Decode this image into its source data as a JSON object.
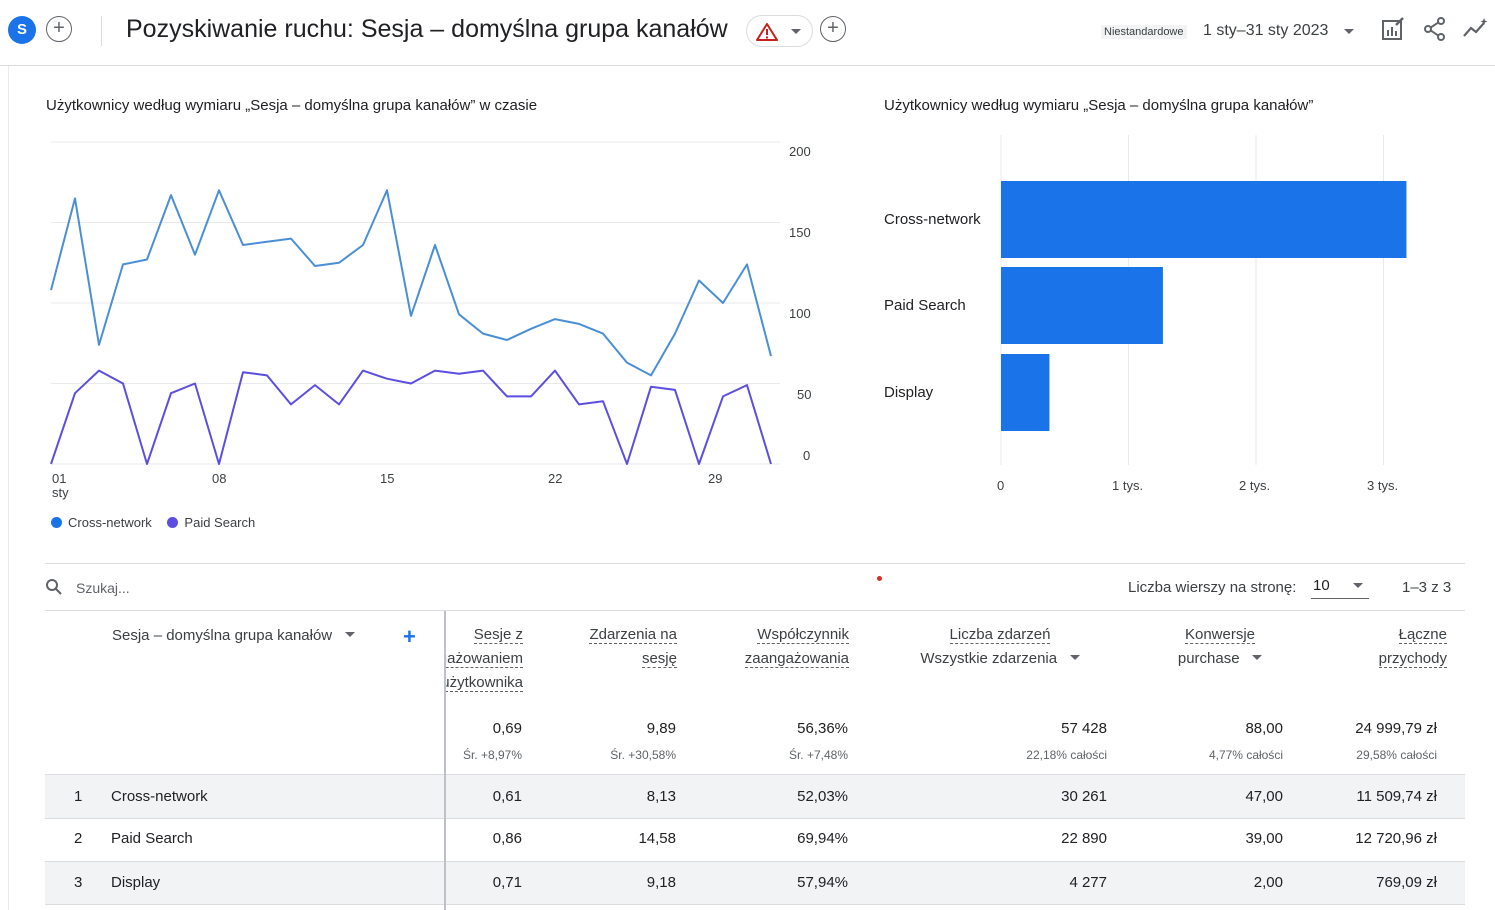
{
  "header": {
    "avatar_letter": "S",
    "title": "Pozyskiwanie ruchu: Sesja – domyślna grupa kanałów",
    "date_label": "Niestandardowe",
    "date_range": "1 sty–31 sty 2023"
  },
  "line_chart": {
    "title": "Użytkownicy według wymiaru „Sesja – domyślna grupa kanałów” w czasie",
    "y_ticks": [
      "200",
      "150",
      "100",
      "50",
      "0"
    ],
    "x_ticks": [
      "01",
      "08",
      "15",
      "22",
      "29"
    ],
    "x_sub": "sty",
    "legend": [
      {
        "label": "Cross-network",
        "color": "#1a73e8"
      },
      {
        "label": "Paid Search",
        "color": "#5b4ee0"
      }
    ]
  },
  "bar_chart": {
    "title": "Użytkownicy według wymiaru „Sesja – domyślna grupa kanałów”",
    "x_ticks": [
      "0",
      "1 tys.",
      "2 tys.",
      "3 tys."
    ]
  },
  "chart_data": [
    {
      "type": "line",
      "title": "Użytkownicy według wymiaru „Sesja – domyślna grupa kanałów” w czasie",
      "x": [
        1,
        2,
        3,
        4,
        5,
        6,
        7,
        8,
        9,
        10,
        11,
        12,
        13,
        14,
        15,
        16,
        17,
        18,
        19,
        20,
        21,
        22,
        23,
        24,
        25,
        26,
        27,
        28,
        29,
        30,
        31
      ],
      "ylim": [
        0,
        200
      ],
      "series": [
        {
          "name": "Cross-network",
          "color": "#4a8fd6",
          "values": [
            108,
            165,
            74,
            124,
            127,
            167,
            130,
            170,
            136,
            138,
            140,
            123,
            125,
            136,
            170,
            92,
            136,
            93,
            81,
            77,
            84,
            90,
            87,
            81,
            63,
            55,
            81,
            114,
            100,
            124,
            67
          ]
        },
        {
          "name": "Paid Search",
          "color": "#5b4ee0",
          "values": [
            0,
            44,
            58,
            50,
            0,
            44,
            50,
            0,
            57,
            55,
            37,
            49,
            37,
            58,
            53,
            50,
            58,
            56,
            58,
            42,
            42,
            58,
            37,
            39,
            0,
            48,
            46,
            0,
            42,
            49,
            0
          ]
        }
      ]
    },
    {
      "type": "bar",
      "orientation": "horizontal",
      "title": "Użytkownicy według wymiaru „Sesja – domyślna grupa kanałów”",
      "categories": [
        "Cross-network",
        "Paid Search",
        "Display"
      ],
      "values": [
        3180,
        1270,
        380
      ],
      "xlim": [
        0,
        3300
      ],
      "color": "#1a73e8"
    }
  ],
  "controls": {
    "search_placeholder": "Szukaj...",
    "rows_label": "Liczba wierszy na stronę:",
    "rows_value": "10",
    "pager": "1–3 z 3"
  },
  "table": {
    "dimension_header": "Sesja – domyślna grupa kanałów",
    "columns": [
      {
        "h1": "Sesje z",
        "h2": "zaangażowaniem",
        "h3": "na użytkownika",
        "total": "0,69",
        "sub": "Śr. +8,97%"
      },
      {
        "h1": "Zdarzenia na",
        "h2": "sesję",
        "h3": "",
        "total": "9,89",
        "sub": "Śr. +30,58%"
      },
      {
        "h1": "Współczynnik",
        "h2": "zaangażowania",
        "h3": "",
        "total": "56,36%",
        "sub": "Śr. +7,48%"
      },
      {
        "h1": "Liczba zdarzeń",
        "h2": "Wszystkie zdarzenia",
        "h3": "",
        "total": "57 428",
        "sub": "22,18% całości"
      },
      {
        "h1": "Konwersje",
        "h2": "purchase",
        "h3": "",
        "total": "88,00",
        "sub": "4,77% całości"
      },
      {
        "h1": "Łączne",
        "h2": "przychody",
        "h3": "",
        "total": "24 999,79 zł",
        "sub": "29,58% całości"
      }
    ],
    "rows": [
      {
        "idx": "1",
        "name": "Cross-network",
        "vals": [
          "0,61",
          "8,13",
          "52,03%",
          "30 261",
          "47,00",
          "11 509,74 zł"
        ]
      },
      {
        "idx": "2",
        "name": "Paid Search",
        "vals": [
          "0,86",
          "14,58",
          "69,94%",
          "22 890",
          "39,00",
          "12 720,96 zł"
        ]
      },
      {
        "idx": "3",
        "name": "Display",
        "vals": [
          "0,71",
          "9,18",
          "57,94%",
          "4 277",
          "2,00",
          "769,09 zł"
        ]
      }
    ]
  }
}
